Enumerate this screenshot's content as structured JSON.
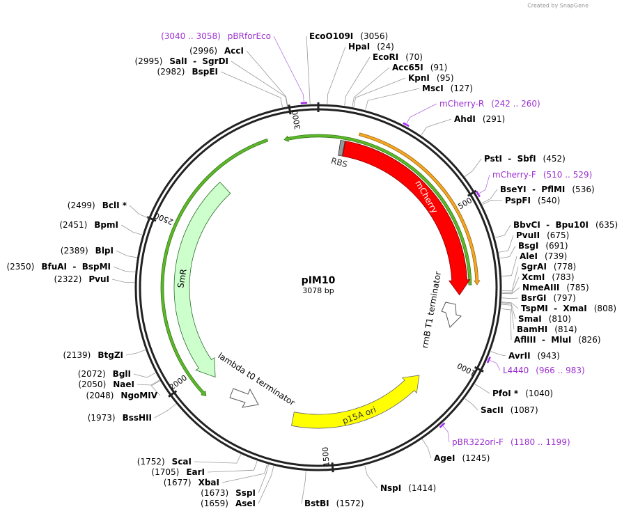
{
  "credit": "Created by SnapGene",
  "plasmid": {
    "name": "pIM10",
    "length": "3078 bp"
  },
  "ruler": [
    "500",
    "1000",
    "1500",
    "2000",
    "2500",
    "3000"
  ],
  "features": [
    {
      "name": "mCherry"
    },
    {
      "name": "RBS"
    },
    {
      "name": "SmR"
    },
    {
      "name": "p15A ori"
    },
    {
      "name": "rrnB T1 terminator"
    },
    {
      "name": "lambda t0 terminator"
    }
  ],
  "primers": [
    {
      "name": "pBRforEco",
      "range": "(3040 .. 3058)"
    },
    {
      "name": "mCherry-R",
      "range": "(242 .. 260)"
    },
    {
      "name": "mCherry-F",
      "range": "(510 .. 529)"
    },
    {
      "name": "L4440",
      "range": "(966 .. 983)"
    },
    {
      "name": "pBR322ori-F",
      "range": "(1180 .. 1199)"
    }
  ],
  "sites": [
    {
      "name": "EcoO109I",
      "position": "(3056)"
    },
    {
      "name": "HpaI",
      "position": "(24)"
    },
    {
      "name": "EcoRI",
      "position": "(70)"
    },
    {
      "name": "Acc65I",
      "position": "(91)"
    },
    {
      "name": "KpnI",
      "position": "(95)"
    },
    {
      "name": "MscI",
      "position": "(127)"
    },
    {
      "name": "AhdI",
      "position": "(291)"
    },
    {
      "name": "PstI  -  SbfI",
      "position": "(452)"
    },
    {
      "name": "BseYI  -  PflMI",
      "position": "(536)"
    },
    {
      "name": "PspFI",
      "position": "(540)"
    },
    {
      "name": "BbvCI  -  Bpu10I",
      "position": "(635)"
    },
    {
      "name": "PvuII",
      "position": "(675)"
    },
    {
      "name": "BsgI",
      "position": "(691)"
    },
    {
      "name": "AleI",
      "position": "(739)"
    },
    {
      "name": "SgrAI",
      "position": "(778)"
    },
    {
      "name": "XcmI",
      "position": "(783)"
    },
    {
      "name": "NmeAIII",
      "position": "(785)"
    },
    {
      "name": "BsrGI",
      "position": "(797)"
    },
    {
      "name": "TspMI  -  XmaI",
      "position": "(808)"
    },
    {
      "name": "SmaI",
      "position": "(810)"
    },
    {
      "name": "BamHI",
      "position": "(814)"
    },
    {
      "name": "AflIII  -  MluI",
      "position": "(826)"
    },
    {
      "name": "AvrII",
      "position": "(943)"
    },
    {
      "name": "PfoI *",
      "position": "(1040)"
    },
    {
      "name": "SacII",
      "position": "(1087)"
    },
    {
      "name": "AgeI",
      "position": "(1245)"
    },
    {
      "name": "NspI",
      "position": "(1414)"
    },
    {
      "name": "BstBI",
      "position": "(1572)"
    },
    {
      "name": "AseI",
      "position": "(1659)"
    },
    {
      "name": "SspI",
      "position": "(1673)"
    },
    {
      "name": "XbaI",
      "position": "(1677)"
    },
    {
      "name": "EarI",
      "position": "(1705)"
    },
    {
      "name": "ScaI",
      "position": "(1752)"
    },
    {
      "name": "BssHII",
      "position": "(1973)"
    },
    {
      "name": "NgoMIV",
      "position": "(2048)"
    },
    {
      "name": "NaeI",
      "position": "(2050)"
    },
    {
      "name": "BglI",
      "position": "(2072)"
    },
    {
      "name": "BtgZI",
      "position": "(2139)"
    },
    {
      "name": "PvuI",
      "position": "(2322)"
    },
    {
      "name": "BfuAI  -  BspMI",
      "position": "(2350)"
    },
    {
      "name": "BlpI",
      "position": "(2389)"
    },
    {
      "name": "BpmI",
      "position": "(2451)"
    },
    {
      "name": "BclI *",
      "position": "(2499)"
    },
    {
      "name": "BspEI",
      "position": "(2982)"
    },
    {
      "name": "SalI  -  SgrDI",
      "position": "(2995)"
    },
    {
      "name": "AccI",
      "position": "(2996)"
    }
  ]
}
